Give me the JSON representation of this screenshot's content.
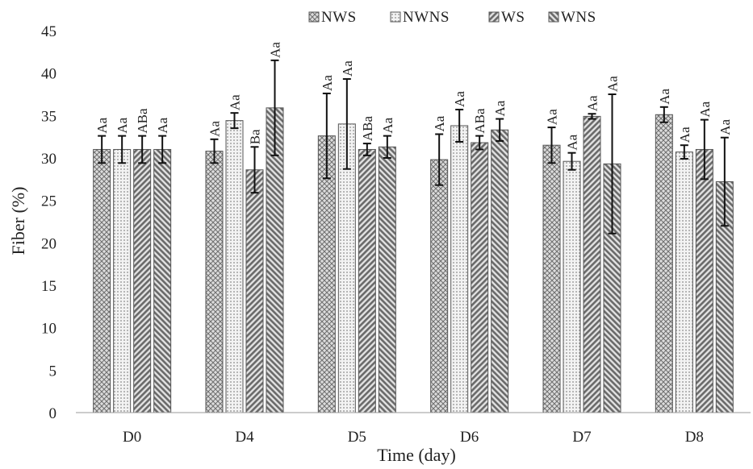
{
  "chart_data": {
    "type": "bar",
    "title": "",
    "xlabel": "Time (day)",
    "ylabel": "Fiber (%)",
    "ylim": [
      0,
      45
    ],
    "yticks": [
      0,
      5,
      10,
      15,
      20,
      25,
      30,
      35,
      40,
      45
    ],
    "grid": false,
    "legend_position": "top-right",
    "categories": [
      "D0",
      "D4",
      "D5",
      "D6",
      "D7",
      "D8"
    ],
    "series": [
      {
        "name": "NWS",
        "pattern": "crosshatch",
        "values": [
          31.0,
          30.8,
          32.6,
          29.8,
          31.5,
          35.1
        ],
        "errors": [
          1.6,
          1.4,
          5.0,
          3.0,
          2.1,
          0.9
        ],
        "labels": [
          "Aa",
          "Aa",
          "Aa",
          "Aa",
          "Aa",
          "Aa"
        ]
      },
      {
        "name": "NWNS",
        "pattern": "dots",
        "values": [
          31.0,
          34.4,
          34.0,
          33.8,
          29.6,
          30.7
        ],
        "errors": [
          1.6,
          0.9,
          5.3,
          1.9,
          1.0,
          0.8
        ],
        "labels": [
          "Aa",
          "Aa",
          "Aa",
          "Aa",
          "Aa",
          "Aa"
        ]
      },
      {
        "name": "WS",
        "pattern": "diagonal-down",
        "values": [
          31.0,
          28.6,
          31.0,
          31.8,
          34.9,
          31.0
        ],
        "errors": [
          1.6,
          2.7,
          0.7,
          0.8,
          0.3,
          3.5
        ],
        "labels": [
          "ABa",
          "Ba",
          "ABa",
          "ABa",
          "Aa",
          "Aa"
        ]
      },
      {
        "name": "WNS",
        "pattern": "diagonal-up",
        "values": [
          31.0,
          35.9,
          31.3,
          33.3,
          29.3,
          27.2
        ],
        "errors": [
          1.6,
          5.6,
          1.3,
          1.3,
          8.2,
          5.2
        ],
        "labels": [
          "Aa",
          "Aa",
          "Aa",
          "Aa",
          "Aa",
          "Aa"
        ]
      }
    ]
  }
}
